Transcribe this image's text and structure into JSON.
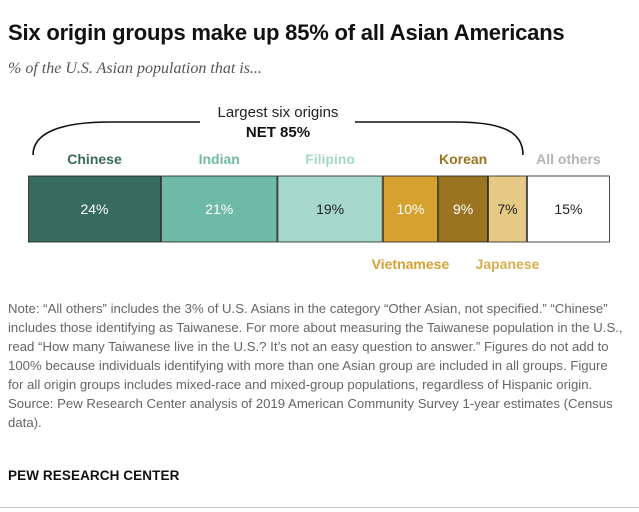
{
  "title": "Six origin groups make up 85% of all Asian Americans",
  "subtitle": "% of the U.S. Asian population that is...",
  "chart_data": {
    "type": "bar",
    "orientation": "stacked-horizontal",
    "bracket": {
      "label": "Largest six origins",
      "net_label": "NET 85%"
    },
    "segments": [
      {
        "name": "Chinese",
        "value": 24,
        "label": "24%",
        "color": "#366b5e",
        "label_color": "#366b5e",
        "label_pos": "above",
        "text_color": "#ffffff"
      },
      {
        "name": "Indian",
        "value": 21,
        "label": "21%",
        "color": "#6fbaa6",
        "label_color": "#6fbaa6",
        "label_pos": "above",
        "text_color": "#ffffff"
      },
      {
        "name": "Filipino",
        "value": 19,
        "label": "19%",
        "color": "#a5d8ca",
        "label_color": "#a5d8ca",
        "label_pos": "above",
        "text_color": "#222222"
      },
      {
        "name": "Vietnamese",
        "value": 10,
        "label": "10%",
        "color": "#d6a12e",
        "label_color": "#d6a12e",
        "label_pos": "below",
        "text_color": "#ffffff"
      },
      {
        "name": "Korean",
        "value": 9,
        "label": "9%",
        "color": "#9a7420",
        "label_color": "#9a7420",
        "label_pos": "above",
        "text_color": "#ffffff"
      },
      {
        "name": "Japanese",
        "value": 7,
        "label": "7%",
        "color": "#e6c985",
        "label_color": "#d8ae4f",
        "label_pos": "below",
        "text_color": "#222222"
      },
      {
        "name": "All others",
        "value": 15,
        "label": "15%",
        "color": "#ffffff",
        "label_color": "#b5b5b5",
        "label_pos": "above",
        "text_color": "#222222"
      }
    ]
  },
  "note": {
    "text": "Note: “All others” includes the 3% of U.S. Asians in the category “Other Asian, not specified.” “Chinese” includes those identifying as Taiwanese. For more about measuring the Taiwanese population in the U.S., read “How many Taiwanese live in the U.S.? It’s not an easy question to answer.” Figures do not add to 100% because individuals identifying with more than one Asian group are included in all groups. Figure for all origin groups includes mixed-race and mixed-group populations, regardless of Hispanic origin.",
    "source": "Source: Pew Research Center analysis of 2019 American Community Survey 1-year estimates (Census data)."
  },
  "brand": "PEW RESEARCH CENTER"
}
